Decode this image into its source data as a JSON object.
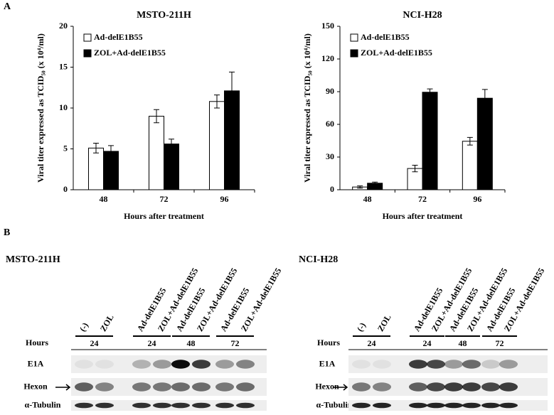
{
  "panels": [
    "A",
    "B"
  ],
  "chart_data": [
    {
      "type": "bar",
      "title": "MSTO-211H",
      "ylabel": "Viral titer expressed as TCID₅₀ (x 10⁴/ml)",
      "xlabel": "Hours after treatment",
      "categories": [
        "48",
        "72",
        "96"
      ],
      "ylim": [
        0,
        20
      ],
      "yticks": [
        0,
        5,
        10,
        15,
        20
      ],
      "legend": "upper left",
      "series": [
        {
          "name": "Ad-delE1B55",
          "color": "#ffffff",
          "values": [
            5.1,
            9.0,
            10.8
          ],
          "errors": [
            0.6,
            0.8,
            0.8
          ]
        },
        {
          "name": "ZOL+Ad-delE1B55",
          "color": "#000000",
          "values": [
            4.7,
            5.6,
            12.1
          ],
          "errors": [
            0.7,
            0.6,
            2.3
          ]
        }
      ]
    },
    {
      "type": "bar",
      "title": "NCI-H28",
      "ylabel": "Viral titer expressed as TCID₅₀ (x 10⁴/ml)",
      "xlabel": "Hours after treatment",
      "categories": [
        "48",
        "72",
        "96"
      ],
      "ylim": [
        0,
        150
      ],
      "yticks": [
        0,
        30,
        60,
        90,
        120,
        150
      ],
      "legend": "upper left",
      "series": [
        {
          "name": "Ad-delE1B55",
          "color": "#ffffff",
          "values": [
            2.5,
            19.5,
            44.5
          ],
          "errors": [
            1,
            3,
            3.5
          ]
        },
        {
          "name": "ZOL+Ad-delE1B55",
          "color": "#000000",
          "values": [
            6,
            89.5,
            84
          ],
          "errors": [
            1,
            3,
            8
          ]
        }
      ]
    }
  ],
  "blots": [
    {
      "title": "MSTO-211H",
      "lanes": [
        "(-)",
        "ZOL",
        "Ad-delE1B55",
        "ZOL+Ad-delE1B55",
        "Ad-delE1B55",
        "ZOL+Ad-delE1B55",
        "Ad-delE1B55",
        "ZOL+Ad-delE1B55"
      ],
      "hours_label": "Hours",
      "hours": [
        24,
        24,
        48,
        72
      ],
      "rows": [
        "E1A",
        "Hexon",
        "α-Tubulin"
      ]
    },
    {
      "title": "NCI-H28",
      "lanes": [
        "(-)",
        "ZOL",
        "Ad-delE1B55",
        "ZOL+Ad-delE1B55",
        "Ad-delE1B55",
        "ZOL+Ad-delE1B55",
        "Ad-delE1B55",
        "ZOL+Ad-delE1B55"
      ],
      "hours_label": "Hours",
      "hours": [
        24,
        24,
        48,
        72
      ],
      "rows": [
        "E1A",
        "Hexon",
        "α-Tubulin"
      ]
    }
  ]
}
